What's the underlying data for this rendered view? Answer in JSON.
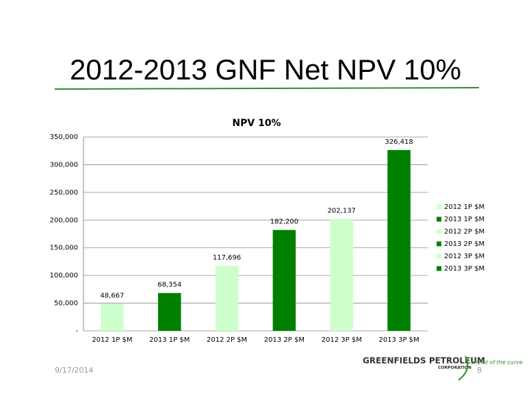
{
  "slide_title": "2012-2013 GNF Net NPV 10%",
  "date": "9/17/2014",
  "page_number": "8",
  "logo": {
    "name": "GREENFIELDS PETROLEUM",
    "sub": "CORPORATION",
    "tagline": "ahead of the curve"
  },
  "chart_data": {
    "type": "bar",
    "title": "NPV 10%",
    "categories": [
      "2012 1P $M",
      "2013 1P $M",
      "2012 2P $M",
      "2013 2P $M",
      "2012 3P $M",
      "2013 3P $M"
    ],
    "values": [
      48667,
      68354,
      117696,
      182200,
      202137,
      326418
    ],
    "value_labels": [
      "48,667",
      "68,354",
      "117,696",
      "182,200",
      "202,137",
      "326,418"
    ],
    "colors": [
      "#ccffcc",
      "#008000",
      "#ccffcc",
      "#008000",
      "#ccffcc",
      "#008000"
    ],
    "ylim": [
      0,
      350000
    ],
    "yticks": [
      {
        "value": 0,
        "label": "-"
      },
      {
        "value": 50000,
        "label": "50,000"
      },
      {
        "value": 100000,
        "label": "100,000"
      },
      {
        "value": 150000,
        "label": "150,000"
      },
      {
        "value": 200000,
        "label": "200,000"
      },
      {
        "value": 250000,
        "label": "250,000"
      },
      {
        "value": 300000,
        "label": "300,000"
      },
      {
        "value": 350000,
        "label": "350,000"
      }
    ],
    "grid": true,
    "legend": "right"
  }
}
